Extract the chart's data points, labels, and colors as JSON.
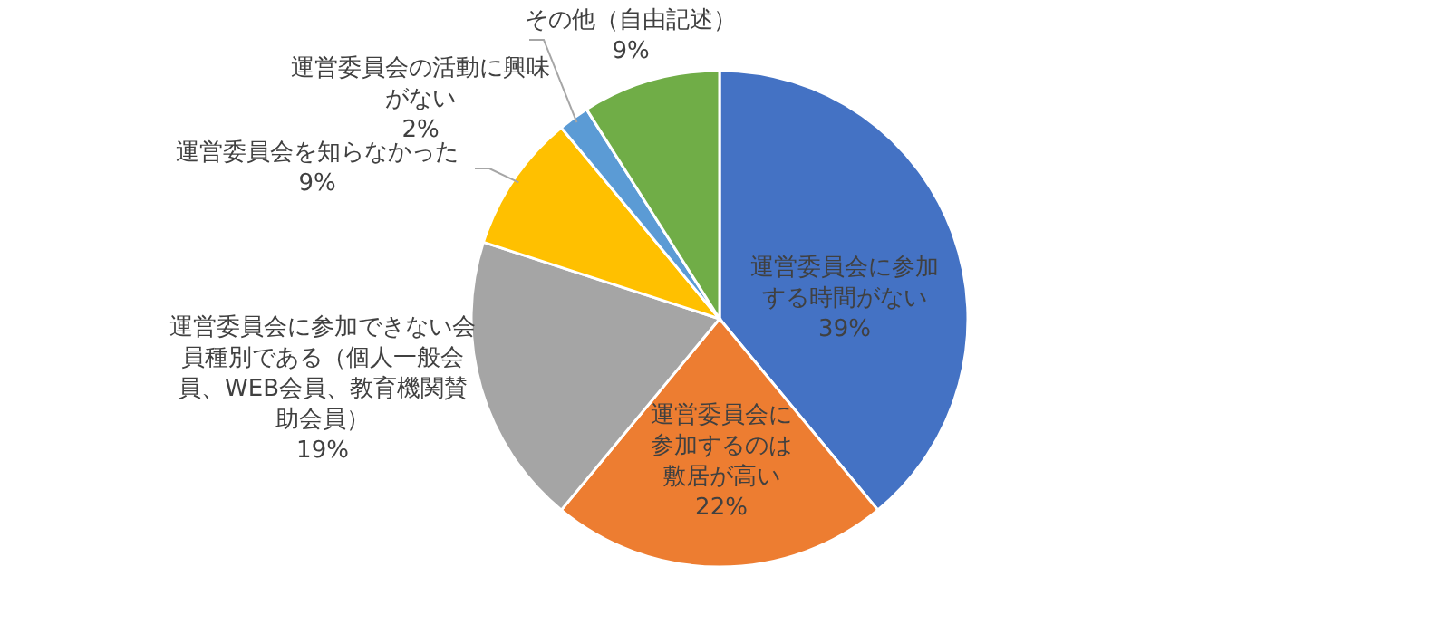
{
  "chart_data": {
    "type": "pie",
    "categories": [
      "運営委員会に参加する時間がない",
      "運営委員会に参加するのは敷居が高い",
      "運営委員会に参加できない会員種別である（個人一般会員、WEB会員、教育機関賛助会員）",
      "運営委員会を知らなかった",
      "運営委員会の活動に興味がない",
      "その他（自由記述）"
    ],
    "values": [
      39,
      22,
      19,
      9,
      2,
      9
    ],
    "value_labels": [
      "39%",
      "22%",
      "19%",
      "9%",
      "2%",
      "9%"
    ],
    "colors": [
      "#4472c4",
      "#ed7d31",
      "#a5a5a5",
      "#ffc000",
      "#5b9bd5",
      "#70ad47"
    ]
  }
}
